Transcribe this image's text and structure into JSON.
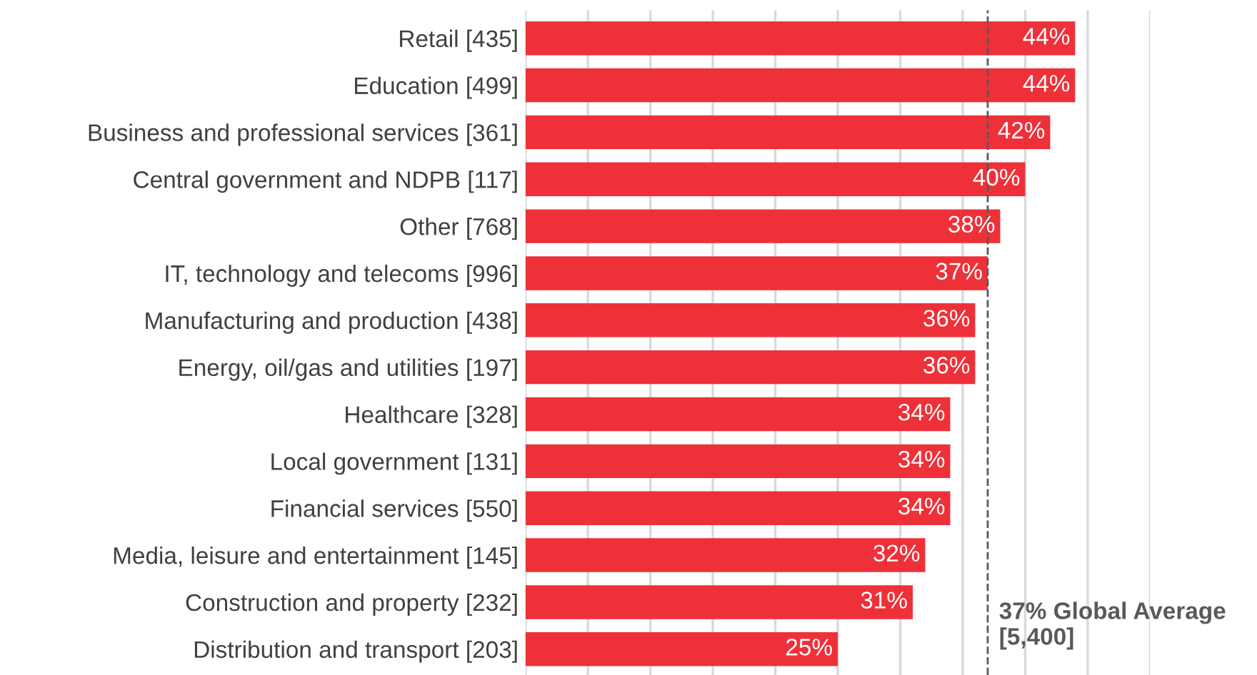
{
  "chart_data": {
    "type": "bar",
    "orientation": "horizontal",
    "categories": [
      "Retail [435]",
      "Education [499]",
      "Business and professional services [361]",
      "Central government and NDPB [117]",
      "Other [768]",
      "IT, technology and telecoms [996]",
      "Manufacturing and production [438]",
      "Energy, oil/gas and utilities [197]",
      "Healthcare [328]",
      "Local government [131]",
      "Financial services [550]",
      "Media, leisure and entertainment [145]",
      "Construction and property [232]",
      "Distribution and transport [203]"
    ],
    "values": [
      44,
      44,
      42,
      40,
      38,
      37,
      36,
      36,
      34,
      34,
      34,
      32,
      31,
      25
    ],
    "value_labels": [
      "44%",
      "44%",
      "42%",
      "40%",
      "38%",
      "37%",
      "36%",
      "36%",
      "34%",
      "34%",
      "34%",
      "32%",
      "31%",
      "25%"
    ],
    "color": "#ee3139",
    "xlim": [
      0,
      50
    ],
    "xticks": [
      {
        "value": 0,
        "label": null
      },
      {
        "value": 5,
        "label": null
      },
      {
        "value": 10,
        "label": null
      },
      {
        "value": 15,
        "label": null
      },
      {
        "value": 20,
        "label": null
      },
      {
        "value": 25,
        "label": null
      },
      {
        "value": 30,
        "label": null
      },
      {
        "value": 35,
        "label": null
      },
      {
        "value": 40,
        "label": null
      },
      {
        "value": 45,
        "label": null
      },
      {
        "value": 50,
        "label": null
      }
    ],
    "tick_labels": "y",
    "grid": "x",
    "ref_lines": [
      {
        "axis": "x",
        "value": 37,
        "label": "37% Global Average\n[5,400]",
        "color": "#595959",
        "line_style": "dashed"
      }
    ]
  }
}
